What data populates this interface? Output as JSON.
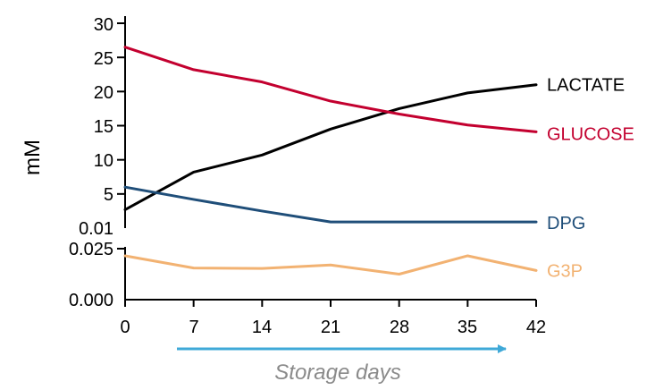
{
  "chart_data": {
    "type": "line",
    "x": [
      0,
      7,
      14,
      21,
      28,
      35,
      42
    ],
    "xlabel": "Storage days",
    "ylabel": "mM",
    "x_ticks": [
      "0",
      "7",
      "14",
      "21",
      "28",
      "35",
      "42"
    ],
    "upper_panel": {
      "ylim": [
        0,
        30
      ],
      "y_ticks": [
        "30",
        "25",
        "20",
        "15",
        "10",
        "5",
        "0.01"
      ],
      "series": [
        {
          "name": "LACTATE",
          "color": "#000000",
          "values": [
            2.7,
            8.2,
            10.7,
            14.5,
            17.5,
            19.8,
            21.0
          ]
        },
        {
          "name": "GLUCOSE",
          "color": "#c3002f",
          "values": [
            26.5,
            23.2,
            21.4,
            18.6,
            16.7,
            15.1,
            14.1
          ]
        },
        {
          "name": "DPG",
          "color": "#1f4e79",
          "values": [
            6.0,
            4.2,
            2.5,
            0.9,
            0.9,
            0.9,
            0.9
          ]
        }
      ]
    },
    "lower_panel": {
      "ylim": [
        0,
        0.025
      ],
      "y_ticks": [
        "0.025",
        "0.000"
      ],
      "series": [
        {
          "name": "G3P",
          "color": "#f2b272",
          "values": [
            0.0215,
            0.0155,
            0.0153,
            0.017,
            0.0125,
            0.0215,
            0.0143
          ]
        }
      ]
    },
    "arrow_color": "#3fa9d8"
  }
}
